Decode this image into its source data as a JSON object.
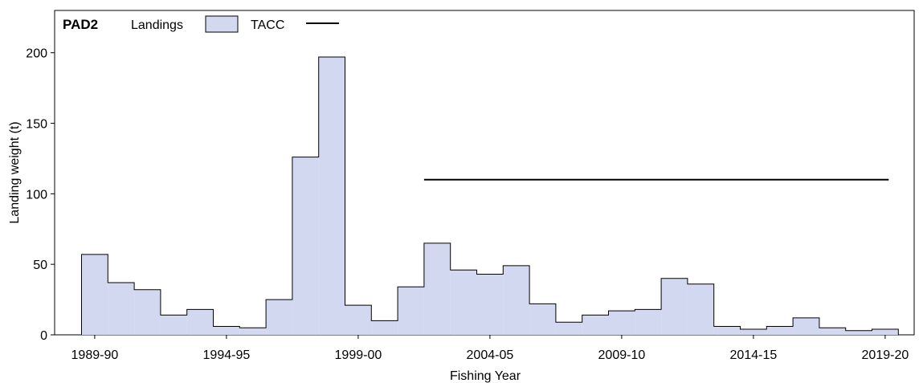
{
  "chart_data": {
    "type": "bar",
    "title": "PAD2",
    "xlabel": "Fishing Year",
    "ylabel": "Landing weight (t)",
    "ylim": [
      0,
      230
    ],
    "yticks": [
      0,
      50,
      100,
      150,
      200
    ],
    "xtick_labels": [
      "1989-90",
      "1994-95",
      "1999-00",
      "2004-05",
      "2009-10",
      "2014-15",
      "2019-20"
    ],
    "xtick_index": [
      0,
      5,
      10,
      15,
      20,
      25,
      30
    ],
    "grid": false,
    "legend_position": "top-left",
    "legend": {
      "landings_label": "Landings",
      "tacc_label": "TACC"
    },
    "colors": {
      "landings_fill": "#d2d8f0",
      "stroke": "#000000"
    },
    "categories": [
      "1989-90",
      "1990-91",
      "1991-92",
      "1992-93",
      "1993-94",
      "1994-95",
      "1995-96",
      "1996-97",
      "1997-98",
      "1998-99",
      "1999-00",
      "2000-01",
      "2001-02",
      "2002-03",
      "2003-04",
      "2004-05",
      "2005-06",
      "2006-07",
      "2007-08",
      "2008-09",
      "2009-10",
      "2010-11",
      "2011-12",
      "2012-13",
      "2013-14",
      "2014-15",
      "2015-16",
      "2016-17",
      "2017-18",
      "2018-19",
      "2019-20"
    ],
    "series": [
      {
        "name": "Landings",
        "values": [
          57,
          37,
          32,
          14,
          18,
          6,
          5,
          25,
          126,
          197,
          21,
          10,
          34,
          65,
          46,
          43,
          49,
          22,
          9,
          14,
          17,
          18,
          40,
          36,
          6,
          4,
          6,
          12,
          5,
          3,
          4
        ]
      },
      {
        "name": "TACC",
        "start_index": 13,
        "end_index": 30,
        "value": 110
      }
    ]
  }
}
